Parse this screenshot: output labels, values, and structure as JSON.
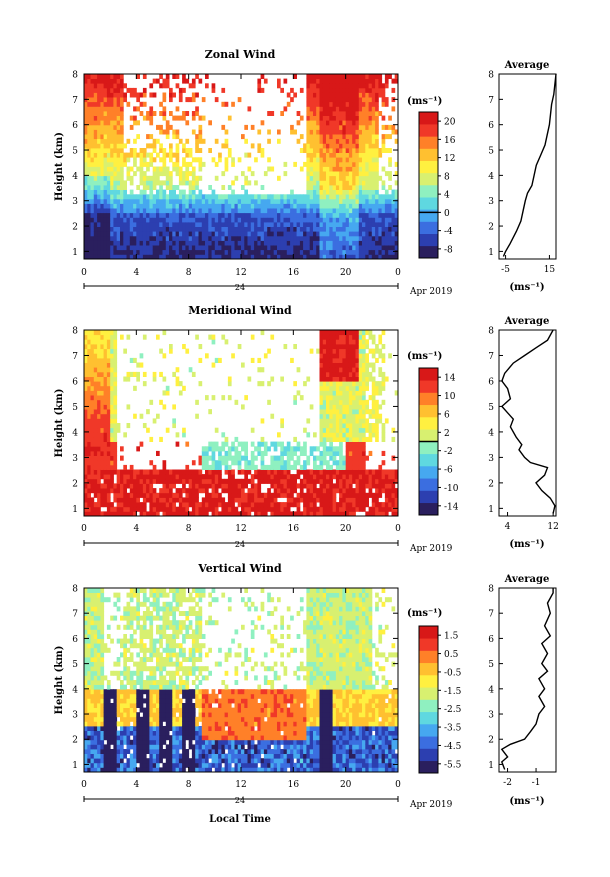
{
  "chart_data": [
    {
      "type": "heatmap",
      "title": "Zonal Wind",
      "ylabel": "Height (km)",
      "xlabel": "",
      "ylim": [
        0.7,
        8
      ],
      "xlim": [
        0,
        24
      ],
      "x_ticks": [
        "0",
        "4",
        "8",
        "12",
        "16",
        "20",
        "0"
      ],
      "y_ticks": [
        "1",
        "2",
        "3",
        "4",
        "5",
        "6",
        "7",
        "8"
      ],
      "date_label": "24",
      "month_label": "Apr 2019",
      "colorbar": {
        "unit": "(ms⁻¹)",
        "ticks": [
          "20",
          "16",
          "12",
          "8",
          "4",
          "0",
          "-4",
          "-8"
        ],
        "range": [
          -10,
          22
        ],
        "marker_value": 0
      },
      "profile": {
        "title": "Average",
        "xlabel": "(ms⁻¹)",
        "x_ticks": [
          "-5",
          "15"
        ],
        "xlim": [
          -8,
          18
        ],
        "points": [
          [
            -6,
            0.8
          ],
          [
            -5,
            1.0
          ],
          [
            -3,
            1.3
          ],
          [
            0,
            1.8
          ],
          [
            2,
            2.2
          ],
          [
            3,
            2.6
          ],
          [
            4,
            3.0
          ],
          [
            5,
            3.3
          ],
          [
            7,
            3.6
          ],
          [
            8,
            4.0
          ],
          [
            9,
            4.4
          ],
          [
            11,
            4.8
          ],
          [
            13,
            5.2
          ],
          [
            14,
            5.6
          ],
          [
            15,
            6.0
          ],
          [
            15.5,
            6.4
          ],
          [
            16,
            6.8
          ],
          [
            17,
            7.2
          ],
          [
            17.5,
            7.6
          ],
          [
            18,
            8.0
          ]
        ]
      }
    },
    {
      "type": "heatmap",
      "title": "Meridional Wind",
      "ylabel": "Height (km)",
      "xlabel": "",
      "ylim": [
        0.7,
        8
      ],
      "xlim": [
        0,
        24
      ],
      "x_ticks": [
        "0",
        "4",
        "8",
        "12",
        "16",
        "20",
        "0"
      ],
      "y_ticks": [
        "1",
        "2",
        "3",
        "4",
        "5",
        "6",
        "7",
        "8"
      ],
      "date_label": "24",
      "month_label": "Apr 2019",
      "colorbar": {
        "unit": "(ms⁻¹)",
        "ticks": [
          "14",
          "10",
          "6",
          "2",
          "-2",
          "-6",
          "-10",
          "-14"
        ],
        "range": [
          -16,
          16
        ],
        "marker_value": 0
      },
      "profile": {
        "title": "Average",
        "xlabel": "(ms⁻¹)",
        "x_ticks": [
          "4",
          "12"
        ],
        "xlim": [
          2.5,
          12.5
        ],
        "points": [
          [
            12,
            0.8
          ],
          [
            12.3,
            1.1
          ],
          [
            11.5,
            1.4
          ],
          [
            10,
            1.7
          ],
          [
            9,
            2.0
          ],
          [
            10.5,
            2.3
          ],
          [
            11,
            2.6
          ],
          [
            8,
            2.8
          ],
          [
            7,
            3.0
          ],
          [
            6,
            3.3
          ],
          [
            6.5,
            3.5
          ],
          [
            5.5,
            3.8
          ],
          [
            4.5,
            4.2
          ],
          [
            5,
            4.5
          ],
          [
            3,
            5.0
          ],
          [
            4.5,
            5.3
          ],
          [
            4,
            5.7
          ],
          [
            3,
            6.0
          ],
          [
            3.5,
            6.3
          ],
          [
            5,
            6.7
          ],
          [
            7,
            7.0
          ],
          [
            9,
            7.3
          ],
          [
            11,
            7.6
          ],
          [
            12,
            8.0
          ]
        ]
      }
    },
    {
      "type": "heatmap",
      "title": "Vertical Wind",
      "ylabel": "Height (km)",
      "xlabel": "Local Time",
      "ylim": [
        0.7,
        8
      ],
      "xlim": [
        0,
        24
      ],
      "x_ticks": [
        "0",
        "4",
        "8",
        "12",
        "16",
        "20",
        "0"
      ],
      "y_ticks": [
        "1",
        "2",
        "3",
        "4",
        "5",
        "6",
        "7",
        "8"
      ],
      "date_label": "24",
      "month_label": "Apr 2019",
      "colorbar": {
        "unit": "(ms⁻¹)",
        "ticks": [
          "1.5",
          "0.5",
          "-0.5",
          "-1.5",
          "-2.5",
          "-3.5",
          "-4.5",
          "-5.5"
        ],
        "range": [
          -6,
          2
        ]
      },
      "profile": {
        "title": "Average",
        "xlabel": "(ms⁻¹)",
        "x_ticks": [
          "-2",
          "-1"
        ],
        "xlim": [
          -2.3,
          -0.3
        ],
        "points": [
          [
            -2.1,
            0.8
          ],
          [
            -2.2,
            1.1
          ],
          [
            -2.0,
            1.3
          ],
          [
            -2.2,
            1.6
          ],
          [
            -1.9,
            1.8
          ],
          [
            -1.4,
            2.0
          ],
          [
            -1.2,
            2.3
          ],
          [
            -1.0,
            2.6
          ],
          [
            -0.9,
            3.0
          ],
          [
            -0.7,
            3.3
          ],
          [
            -0.9,
            3.7
          ],
          [
            -0.7,
            4.0
          ],
          [
            -0.9,
            4.4
          ],
          [
            -0.6,
            4.7
          ],
          [
            -0.8,
            5.0
          ],
          [
            -0.6,
            5.4
          ],
          [
            -0.8,
            5.8
          ],
          [
            -0.5,
            6.1
          ],
          [
            -0.7,
            6.5
          ],
          [
            -0.5,
            7.0
          ],
          [
            -0.6,
            7.4
          ],
          [
            -0.4,
            7.8
          ],
          [
            -0.4,
            8.0
          ]
        ]
      }
    }
  ]
}
